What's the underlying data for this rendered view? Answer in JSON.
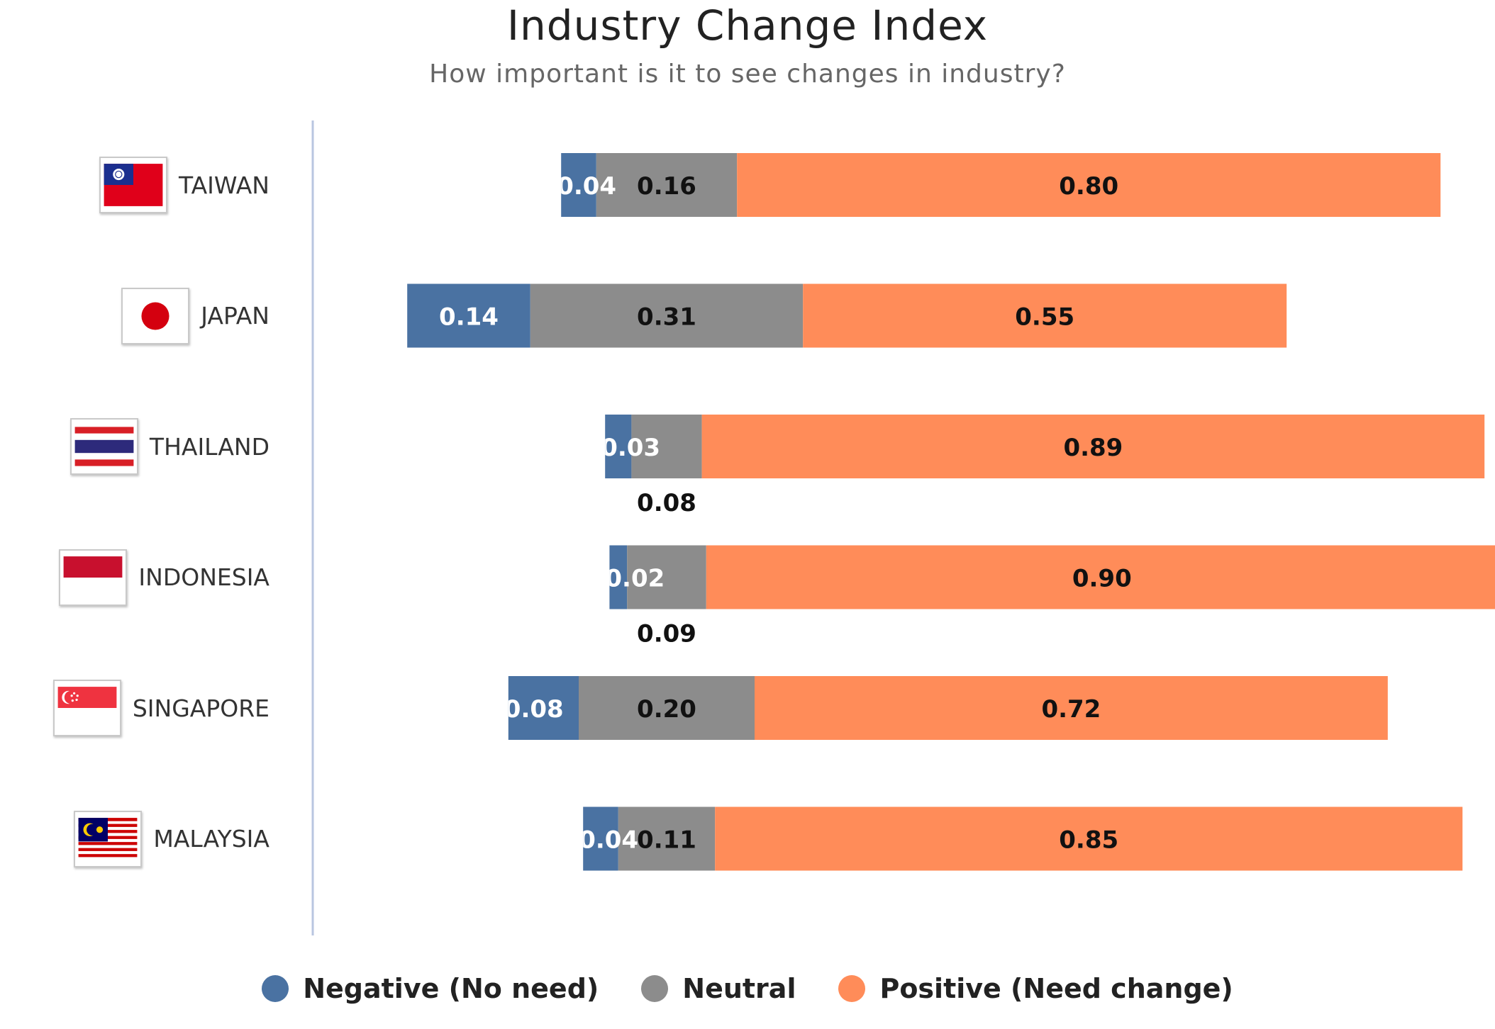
{
  "title": "Industry Change Index",
  "subtitle": "How important is it to see changes in industry?",
  "colors": {
    "negative": "#4a72a2",
    "neutral": "#8c8c8c",
    "positive": "#ff8c59",
    "axis": "#b9c6e0"
  },
  "chart_data": {
    "type": "bar",
    "orientation": "horizontal",
    "stacked": true,
    "title": "Industry Change Index",
    "subtitle": "How important is it to see changes in industry?",
    "categories": [
      "TAIWAN",
      "JAPAN",
      "THAILAND",
      "INDONESIA",
      "SINGAPORE",
      "MALAYSIA"
    ],
    "flags": [
      "taiwan-flag-icon",
      "japan-flag-icon",
      "thailand-flag-icon",
      "indonesia-flag-icon",
      "singapore-flag-icon",
      "malaysia-flag-icon"
    ],
    "series": [
      {
        "name": "Negative (No need)",
        "color": "#4a72a2",
        "values": [
          0.04,
          0.14,
          0.03,
          0.02,
          0.08,
          0.04
        ],
        "labels": [
          "0.04",
          "0.14",
          "0.03",
          "0.02",
          "0.08",
          "0.04"
        ]
      },
      {
        "name": "Neutral",
        "color": "#8c8c8c",
        "values": [
          0.16,
          0.31,
          0.08,
          0.09,
          0.2,
          0.11
        ],
        "labels": [
          "0.16",
          "0.31",
          "0.08",
          "0.09",
          "0.20",
          "0.11"
        ]
      },
      {
        "name": "Positive (Need change)",
        "color": "#ff8c59",
        "values": [
          0.8,
          0.55,
          0.89,
          0.9,
          0.72,
          0.85
        ],
        "labels": [
          "0.80",
          "0.55",
          "0.89",
          "0.90",
          "0.72",
          "0.85"
        ]
      }
    ],
    "diverging_center": "neutral",
    "legend_position": "bottom",
    "grid": false
  },
  "legend": [
    {
      "label": "Negative (No need)",
      "color": "#4a72a2"
    },
    {
      "label": "Neutral",
      "color": "#8c8c8c"
    },
    {
      "label": "Positive (Need change)",
      "color": "#ff8c59"
    }
  ]
}
